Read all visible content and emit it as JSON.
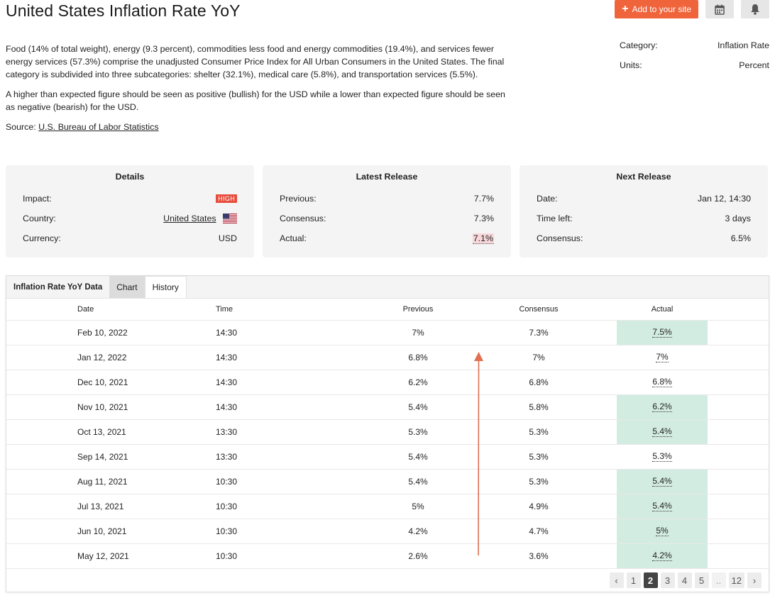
{
  "title": "United States Inflation Rate YoY",
  "actions": {
    "add_label": "Add to your site",
    "calendar_icon": "calendar-icon",
    "bell_icon": "bell-icon",
    "accent": "#f0643c"
  },
  "description": {
    "p1": "Food (14% of total weight), energy (9.3 percent), commodities less food and energy commodities (19.4%), and services fewer energy services (57.3%) comprise the unadjusted Consumer Price Index for All Urban Consumers in the United States. The final category is subdivided into three subcategories: shelter (32.1%), medical care (5.8%), and transportation services (5.5%).",
    "p2": "A higher than expected figure should be seen as positive (bullish) for the USD while a lower than expected figure should be seen as negative (bearish) for the USD.",
    "source_label": "Source:",
    "source_link": "U.S. Bureau of Labor Statistics"
  },
  "meta": {
    "category_label": "Category:",
    "category_value": "Inflation Rate",
    "units_label": "Units:",
    "units_value": "Percent"
  },
  "details": {
    "title": "Details",
    "impact_label": "Impact:",
    "impact_value": "HIGH",
    "country_label": "Country:",
    "country_value": "United States",
    "currency_label": "Currency:",
    "currency_value": "USD"
  },
  "latest": {
    "title": "Latest Release",
    "previous_label": "Previous:",
    "previous_value": "7.7%",
    "consensus_label": "Consensus:",
    "consensus_value": "7.3%",
    "actual_label": "Actual:",
    "actual_value": "7.1%"
  },
  "next": {
    "title": "Next Release",
    "date_label": "Date:",
    "date_value": "Jan 12, 14:30",
    "timeleft_label": "Time left:",
    "timeleft_value": "3 days",
    "consensus_label": "Consensus:",
    "consensus_value": "6.5%"
  },
  "tabs": [
    "Inflation Rate YoY Data",
    "Chart",
    "History"
  ],
  "table": {
    "headers": [
      "Date",
      "Time",
      "Previous",
      "Consensus",
      "Actual"
    ],
    "rows": [
      {
        "date": "Feb 10, 2022",
        "time": "14:30",
        "previous": "7%",
        "consensus": "7.3%",
        "actual": "7.5%",
        "beat": true
      },
      {
        "date": "Jan 12, 2022",
        "time": "14:30",
        "previous": "6.8%",
        "consensus": "7%",
        "actual": "7%",
        "beat": false
      },
      {
        "date": "Dec 10, 2021",
        "time": "14:30",
        "previous": "6.2%",
        "consensus": "6.8%",
        "actual": "6.8%",
        "beat": false
      },
      {
        "date": "Nov 10, 2021",
        "time": "14:30",
        "previous": "5.4%",
        "consensus": "5.8%",
        "actual": "6.2%",
        "beat": true
      },
      {
        "date": "Oct 13, 2021",
        "time": "13:30",
        "previous": "5.3%",
        "consensus": "5.3%",
        "actual": "5.4%",
        "beat": true
      },
      {
        "date": "Sep 14, 2021",
        "time": "13:30",
        "previous": "5.4%",
        "consensus": "5.3%",
        "actual": "5.3%",
        "beat": false
      },
      {
        "date": "Aug 11, 2021",
        "time": "10:30",
        "previous": "5.4%",
        "consensus": "5.3%",
        "actual": "5.4%",
        "beat": true
      },
      {
        "date": "Jul 13, 2021",
        "time": "10:30",
        "previous": "5%",
        "consensus": "4.9%",
        "actual": "5.4%",
        "beat": true
      },
      {
        "date": "Jun 10, 2021",
        "time": "10:30",
        "previous": "4.2%",
        "consensus": "4.7%",
        "actual": "5%",
        "beat": true
      },
      {
        "date": "May 12, 2021",
        "time": "10:30",
        "previous": "2.6%",
        "consensus": "3.6%",
        "actual": "4.2%",
        "beat": true
      }
    ]
  },
  "pagination": {
    "prev": "‹",
    "pages": [
      "1",
      "2",
      "3",
      "4",
      "5",
      "..",
      "12"
    ],
    "active": "2",
    "next": "›"
  },
  "colors": {
    "beat_bg": "#d3ece1",
    "actual_highlight": "#f8d7da",
    "arrow": "#e07050"
  }
}
